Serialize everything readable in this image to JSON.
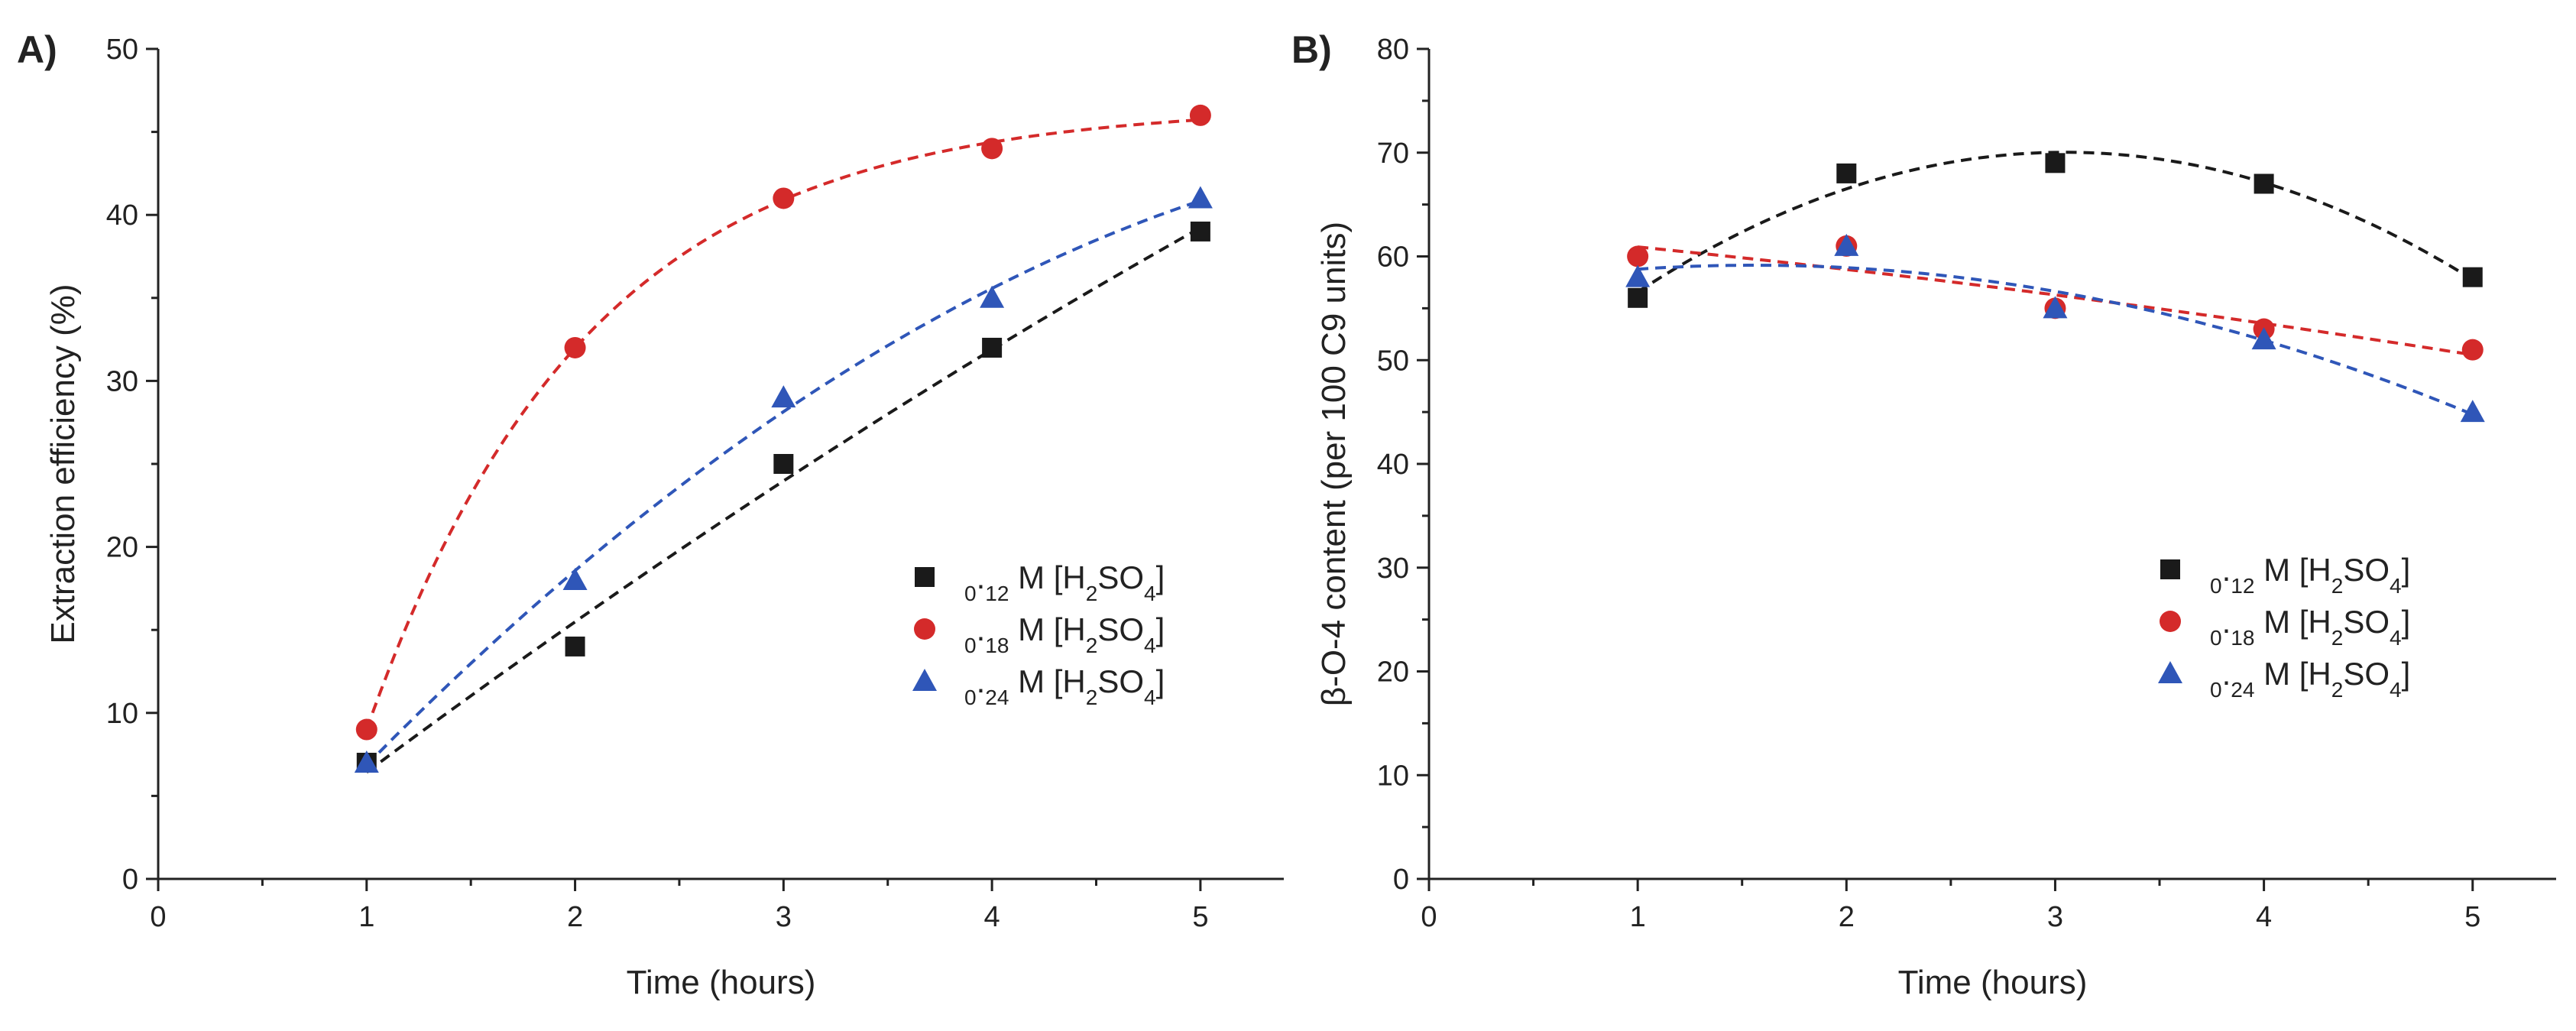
{
  "chart_data": [
    {
      "panel_label": "A)",
      "type": "scatter",
      "xlabel": "Time (hours)",
      "ylabel": "Extraction efficiency (%)",
      "xlim": [
        0,
        5.4
      ],
      "ylim": [
        0,
        50
      ],
      "xticks": [
        0,
        1,
        2,
        3,
        4,
        5
      ],
      "yticks": [
        0,
        10,
        20,
        30,
        40,
        50
      ],
      "grid": false,
      "legend_position": "center-right",
      "series": [
        {
          "name": "0.12 M [H2SO4]",
          "marker": "square",
          "color": "#1a1a1a",
          "x": [
            1,
            2,
            3,
            4,
            5
          ],
          "y": [
            7,
            14,
            25,
            32,
            39
          ],
          "fit": "quadratic"
        },
        {
          "name": "0.18 M [H2SO4]",
          "marker": "circle",
          "color": "#d42a2a",
          "x": [
            1,
            2,
            3,
            4,
            5
          ],
          "y": [
            9,
            32,
            41,
            44,
            46
          ],
          "fit": "exponential"
        },
        {
          "name": "0.24 M [H2SO4]",
          "marker": "triangle",
          "color": "#2f56b8",
          "x": [
            1,
            2,
            3,
            4,
            5
          ],
          "y": [
            7,
            18,
            29,
            35,
            41
          ],
          "fit": "quadratic"
        }
      ]
    },
    {
      "panel_label": "B)",
      "type": "scatter",
      "xlabel": "Time (hours)",
      "ylabel": "β-O-4 content (per 100 C9 units)",
      "xlim": [
        0,
        5.4
      ],
      "ylim": [
        0,
        80
      ],
      "xticks": [
        0,
        1,
        2,
        3,
        4,
        5
      ],
      "yticks": [
        0,
        10,
        20,
        30,
        40,
        50,
        60,
        70,
        80
      ],
      "grid": false,
      "legend_position": "lower-right",
      "series": [
        {
          "name": "0.12 M [H2SO4]",
          "marker": "square",
          "color": "#1a1a1a",
          "x": [
            1,
            2,
            3,
            4,
            5
          ],
          "y": [
            56,
            68,
            69,
            67,
            58
          ],
          "fit": "quadratic"
        },
        {
          "name": "0.18 M [H2SO4]",
          "marker": "circle",
          "color": "#d42a2a",
          "x": [
            1,
            2,
            3,
            4,
            5
          ],
          "y": [
            60,
            61,
            55,
            53,
            51
          ],
          "fit": "quadratic"
        },
        {
          "name": "0.24 M [H2SO4]",
          "marker": "triangle",
          "color": "#2f56b8",
          "x": [
            1,
            2,
            3,
            4,
            5
          ],
          "y": [
            58,
            61,
            55,
            52,
            45
          ],
          "fit": "quadratic"
        }
      ]
    }
  ]
}
